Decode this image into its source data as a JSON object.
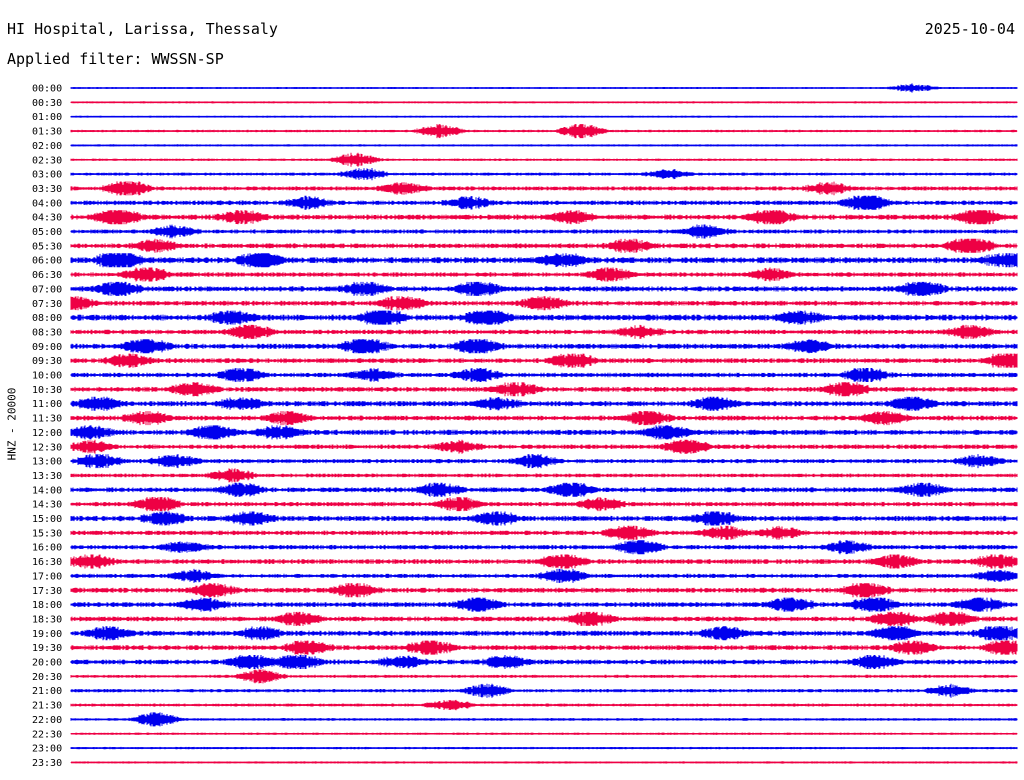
{
  "header": {
    "station": "HI Hospital, Larissa, Thessaly",
    "date": "2025-10-04",
    "filter_label": "Applied filter: WWSSN-SP"
  },
  "chart_data": {
    "type": "line",
    "title": "HI Hospital, Larissa, Thessaly",
    "subtitle": "Applied filter: WWSSN-SP",
    "date": "2025-10-04",
    "ylabel": "HNZ - 20000",
    "xlabel": "",
    "colors": [
      "#0000ee",
      "#ee0044"
    ],
    "rows": [
      {
        "label": "00:00",
        "color": "#0000ee",
        "activity": 0.05,
        "bursts": [
          [
            0.89,
            0.4
          ]
        ]
      },
      {
        "label": "00:30",
        "color": "#ee0044",
        "activity": 0.06,
        "bursts": []
      },
      {
        "label": "01:00",
        "color": "#0000ee",
        "activity": 0.04,
        "bursts": []
      },
      {
        "label": "01:30",
        "color": "#ee0044",
        "activity": 0.12,
        "bursts": [
          [
            0.39,
            0.7
          ],
          [
            0.54,
            0.8
          ]
        ]
      },
      {
        "label": "02:00",
        "color": "#0000ee",
        "activity": 0.08,
        "bursts": []
      },
      {
        "label": "02:30",
        "color": "#ee0044",
        "activity": 0.12,
        "bursts": [
          [
            0.3,
            0.7
          ]
        ]
      },
      {
        "label": "03:00",
        "color": "#0000ee",
        "activity": 0.2,
        "bursts": [
          [
            0.31,
            0.6
          ],
          [
            0.63,
            0.5
          ]
        ]
      },
      {
        "label": "03:30",
        "color": "#ee0044",
        "activity": 0.35,
        "bursts": [
          [
            0.06,
            0.9
          ],
          [
            0.35,
            0.6
          ],
          [
            0.8,
            0.6
          ]
        ]
      },
      {
        "label": "04:00",
        "color": "#0000ee",
        "activity": 0.4,
        "bursts": [
          [
            0.25,
            0.6
          ],
          [
            0.42,
            0.6
          ],
          [
            0.84,
            1.0
          ]
        ]
      },
      {
        "label": "04:30",
        "color": "#ee0044",
        "activity": 0.5,
        "bursts": [
          [
            0.05,
            0.9
          ],
          [
            0.18,
            0.7
          ],
          [
            0.53,
            0.6
          ],
          [
            0.74,
            0.9
          ],
          [
            0.96,
            0.9
          ]
        ]
      },
      {
        "label": "05:00",
        "color": "#0000ee",
        "activity": 0.35,
        "bursts": [
          [
            0.11,
            0.6
          ],
          [
            0.67,
            0.7
          ]
        ]
      },
      {
        "label": "05:30",
        "color": "#ee0044",
        "activity": 0.45,
        "bursts": [
          [
            0.09,
            0.6
          ],
          [
            0.59,
            0.7
          ],
          [
            0.95,
            1.0
          ]
        ]
      },
      {
        "label": "06:00",
        "color": "#0000ee",
        "activity": 0.6,
        "bursts": [
          [
            0.05,
            1.0
          ],
          [
            0.2,
            0.9
          ],
          [
            0.52,
            0.7
          ],
          [
            0.99,
            0.8
          ]
        ]
      },
      {
        "label": "06:30",
        "color": "#ee0044",
        "activity": 0.4,
        "bursts": [
          [
            0.08,
            0.8
          ],
          [
            0.57,
            0.7
          ],
          [
            0.74,
            0.6
          ]
        ]
      },
      {
        "label": "07:00",
        "color": "#0000ee",
        "activity": 0.5,
        "bursts": [
          [
            0.05,
            0.8
          ],
          [
            0.31,
            0.7
          ],
          [
            0.43,
            0.8
          ],
          [
            0.9,
            0.9
          ]
        ]
      },
      {
        "label": "07:30",
        "color": "#ee0044",
        "activity": 0.45,
        "bursts": [
          [
            0.0,
            0.9
          ],
          [
            0.35,
            0.8
          ],
          [
            0.5,
            0.7
          ]
        ]
      },
      {
        "label": "08:00",
        "color": "#0000ee",
        "activity": 0.6,
        "bursts": [
          [
            0.17,
            0.8
          ],
          [
            0.33,
            0.9
          ],
          [
            0.44,
            0.9
          ],
          [
            0.77,
            0.6
          ]
        ]
      },
      {
        "label": "08:30",
        "color": "#ee0044",
        "activity": 0.4,
        "bursts": [
          [
            0.19,
            0.8
          ],
          [
            0.6,
            0.6
          ],
          [
            0.95,
            0.7
          ]
        ]
      },
      {
        "label": "09:00",
        "color": "#0000ee",
        "activity": 0.5,
        "bursts": [
          [
            0.08,
            0.9
          ],
          [
            0.31,
            0.9
          ],
          [
            0.43,
            0.9
          ],
          [
            0.78,
            0.7
          ]
        ]
      },
      {
        "label": "09:30",
        "color": "#ee0044",
        "activity": 0.45,
        "bursts": [
          [
            0.06,
            0.7
          ],
          [
            0.53,
            0.8
          ],
          [
            0.99,
            0.9
          ]
        ]
      },
      {
        "label": "10:00",
        "color": "#0000ee",
        "activity": 0.4,
        "bursts": [
          [
            0.18,
            0.8
          ],
          [
            0.32,
            0.6
          ],
          [
            0.43,
            0.7
          ],
          [
            0.84,
            0.8
          ]
        ]
      },
      {
        "label": "10:30",
        "color": "#ee0044",
        "activity": 0.45,
        "bursts": [
          [
            0.13,
            0.7
          ],
          [
            0.47,
            0.7
          ],
          [
            0.82,
            0.8
          ]
        ]
      },
      {
        "label": "11:00",
        "color": "#0000ee",
        "activity": 0.5,
        "bursts": [
          [
            0.03,
            0.7
          ],
          [
            0.18,
            0.6
          ],
          [
            0.45,
            0.6
          ],
          [
            0.68,
            0.7
          ],
          [
            0.89,
            0.8
          ]
        ]
      },
      {
        "label": "11:30",
        "color": "#ee0044",
        "activity": 0.45,
        "bursts": [
          [
            0.08,
            0.7
          ],
          [
            0.23,
            0.7
          ],
          [
            0.61,
            0.8
          ],
          [
            0.86,
            0.7
          ]
        ]
      },
      {
        "label": "12:00",
        "color": "#0000ee",
        "activity": 0.5,
        "bursts": [
          [
            0.02,
            0.7
          ],
          [
            0.15,
            0.8
          ],
          [
            0.22,
            0.7
          ],
          [
            0.63,
            0.9
          ]
        ]
      },
      {
        "label": "12:30",
        "color": "#ee0044",
        "activity": 0.4,
        "bursts": [
          [
            0.02,
            0.6
          ],
          [
            0.41,
            0.6
          ],
          [
            0.65,
            0.8
          ]
        ]
      },
      {
        "label": "13:00",
        "color": "#0000ee",
        "activity": 0.35,
        "bursts": [
          [
            0.03,
            0.8
          ],
          [
            0.11,
            0.7
          ],
          [
            0.49,
            0.7
          ],
          [
            0.96,
            0.6
          ]
        ]
      },
      {
        "label": "13:30",
        "color": "#ee0044",
        "activity": 0.3,
        "bursts": [
          [
            0.17,
            0.7
          ]
        ]
      },
      {
        "label": "14:00",
        "color": "#0000ee",
        "activity": 0.45,
        "bursts": [
          [
            0.18,
            0.7
          ],
          [
            0.39,
            0.7
          ],
          [
            0.53,
            0.8
          ],
          [
            0.9,
            0.7
          ]
        ]
      },
      {
        "label": "14:30",
        "color": "#ee0044",
        "activity": 0.4,
        "bursts": [
          [
            0.09,
            0.9
          ],
          [
            0.41,
            0.7
          ],
          [
            0.56,
            0.6
          ]
        ]
      },
      {
        "label": "15:00",
        "color": "#0000ee",
        "activity": 0.5,
        "bursts": [
          [
            0.1,
            0.7
          ],
          [
            0.19,
            0.7
          ],
          [
            0.45,
            0.7
          ],
          [
            0.68,
            0.8
          ]
        ]
      },
      {
        "label": "15:30",
        "color": "#ee0044",
        "activity": 0.4,
        "bursts": [
          [
            0.59,
            0.8
          ],
          [
            0.69,
            0.7
          ],
          [
            0.75,
            0.6
          ]
        ]
      },
      {
        "label": "16:00",
        "color": "#0000ee",
        "activity": 0.4,
        "bursts": [
          [
            0.12,
            0.6
          ],
          [
            0.6,
            0.9
          ],
          [
            0.82,
            0.6
          ]
        ]
      },
      {
        "label": "16:30",
        "color": "#ee0044",
        "activity": 0.45,
        "bursts": [
          [
            0.02,
            0.8
          ],
          [
            0.52,
            0.8
          ],
          [
            0.87,
            0.7
          ],
          [
            0.98,
            0.8
          ]
        ]
      },
      {
        "label": "17:00",
        "color": "#0000ee",
        "activity": 0.35,
        "bursts": [
          [
            0.13,
            0.6
          ],
          [
            0.52,
            0.8
          ],
          [
            0.98,
            0.6
          ]
        ]
      },
      {
        "label": "17:30",
        "color": "#ee0044",
        "activity": 0.45,
        "bursts": [
          [
            0.15,
            0.7
          ],
          [
            0.3,
            0.8
          ],
          [
            0.84,
            0.9
          ]
        ]
      },
      {
        "label": "18:00",
        "color": "#0000ee",
        "activity": 0.45,
        "bursts": [
          [
            0.14,
            0.7
          ],
          [
            0.43,
            0.8
          ],
          [
            0.76,
            0.8
          ],
          [
            0.85,
            0.9
          ],
          [
            0.96,
            0.8
          ]
        ]
      },
      {
        "label": "18:30",
        "color": "#ee0044",
        "activity": 0.45,
        "bursts": [
          [
            0.24,
            0.8
          ],
          [
            0.55,
            0.8
          ],
          [
            0.87,
            0.8
          ],
          [
            0.93,
            0.8
          ]
        ]
      },
      {
        "label": "19:00",
        "color": "#0000ee",
        "activity": 0.5,
        "bursts": [
          [
            0.04,
            0.7
          ],
          [
            0.2,
            0.6
          ],
          [
            0.69,
            0.7
          ],
          [
            0.87,
            0.8
          ],
          [
            0.98,
            0.9
          ]
        ]
      },
      {
        "label": "19:30",
        "color": "#ee0044",
        "activity": 0.45,
        "bursts": [
          [
            0.25,
            0.8
          ],
          [
            0.38,
            0.8
          ],
          [
            0.89,
            0.7
          ],
          [
            0.99,
            0.9
          ]
        ]
      },
      {
        "label": "20:00",
        "color": "#0000ee",
        "activity": 0.45,
        "bursts": [
          [
            0.19,
            0.8
          ],
          [
            0.24,
            0.9
          ],
          [
            0.35,
            0.6
          ],
          [
            0.46,
            0.6
          ],
          [
            0.85,
            0.7
          ]
        ]
      },
      {
        "label": "20:30",
        "color": "#ee0044",
        "activity": 0.2,
        "bursts": [
          [
            0.2,
            0.7
          ]
        ]
      },
      {
        "label": "21:00",
        "color": "#0000ee",
        "activity": 0.25,
        "bursts": [
          [
            0.44,
            0.7
          ],
          [
            0.93,
            0.6
          ]
        ]
      },
      {
        "label": "21:30",
        "color": "#ee0044",
        "activity": 0.2,
        "bursts": [
          [
            0.4,
            0.6
          ]
        ]
      },
      {
        "label": "22:00",
        "color": "#0000ee",
        "activity": 0.15,
        "bursts": [
          [
            0.09,
            0.8
          ]
        ]
      },
      {
        "label": "22:30",
        "color": "#ee0044",
        "activity": 0.1,
        "bursts": []
      },
      {
        "label": "23:00",
        "color": "#0000ee",
        "activity": 0.1,
        "bursts": []
      },
      {
        "label": "23:30",
        "color": "#ee0044",
        "activity": 0.08,
        "bursts": []
      }
    ]
  }
}
